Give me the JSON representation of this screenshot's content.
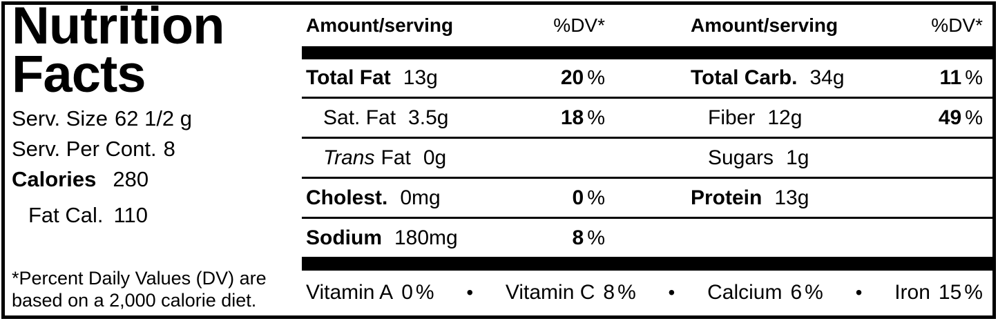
{
  "left_panel": {
    "title_line1": "Nutrition",
    "title_line2": "Facts",
    "serv_size_label": "Serv. Size",
    "serv_size_value": "62 1/2 g",
    "serv_per_cont_label": "Serv. Per Cont.",
    "serv_per_cont_value": "8",
    "calories_label": "Calories",
    "calories_value": "280",
    "fat_cal_label": "Fat Cal.",
    "fat_cal_value": "110",
    "footnote": "*Percent Daily Values (DV) are based on a 2,000 calorie diet."
  },
  "table": {
    "header": {
      "amount_serving": "Amount/serving",
      "dv": "%DV*"
    },
    "percent_sign": "%",
    "bullet": "•",
    "left_rows": [
      {
        "italic": "",
        "name": "Total Fat",
        "amount": "13g",
        "dv": "20",
        "dv_sym": "%"
      },
      {
        "italic": "",
        "name": "Sat. Fat",
        "amount": "3.5g",
        "dv": "18",
        "dv_sym": "%"
      },
      {
        "italic": "Trans",
        "name": "Fat",
        "amount": "0g",
        "dv": "",
        "dv_sym": ""
      },
      {
        "italic": "",
        "name": "Cholest.",
        "amount": "0mg",
        "dv": "0",
        "dv_sym": "%"
      },
      {
        "italic": "",
        "name": "Sodium",
        "amount": "180mg",
        "dv": "8",
        "dv_sym": "%"
      }
    ],
    "right_rows": [
      {
        "italic": "",
        "name": "Total Carb.",
        "amount": "34g",
        "dv": "11",
        "dv_sym": "%"
      },
      {
        "italic": "",
        "name": "Fiber",
        "amount": "12g",
        "dv": "49",
        "dv_sym": "%"
      },
      {
        "italic": "",
        "name": "Sugars",
        "amount": "1g",
        "dv": "",
        "dv_sym": ""
      },
      {
        "italic": "",
        "name": "Protein",
        "amount": "13g",
        "dv": "",
        "dv_sym": ""
      },
      {
        "italic": "",
        "name": "",
        "amount": "",
        "dv": "",
        "dv_sym": ""
      }
    ],
    "vitamins": [
      {
        "name": "Vitamin A",
        "value": "0"
      },
      {
        "name": "Vitamin C",
        "value": "8"
      },
      {
        "name": "Calcium",
        "value": "6"
      },
      {
        "name": "Iron",
        "value": "15"
      }
    ]
  },
  "colors": {
    "ink": "#000000",
    "paper": "#ffffff"
  }
}
